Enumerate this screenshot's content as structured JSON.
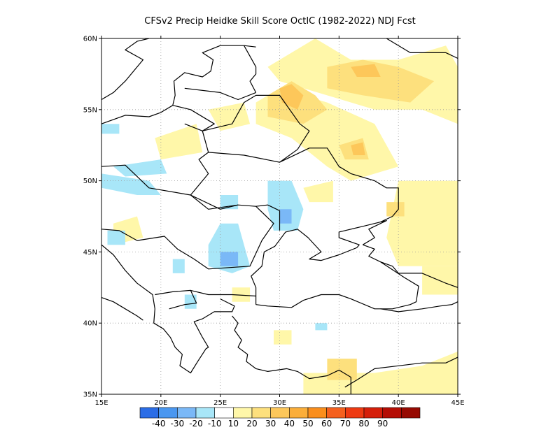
{
  "title": "CFSv2 Precip Heidke Skill Score OctIC (1982-2022) NDJ Fcst",
  "map": {
    "lon_range": [
      15,
      45
    ],
    "lat_range": [
      35,
      60
    ],
    "x_ticks": [
      {
        "value": 15,
        "label": "15E"
      },
      {
        "value": 20,
        "label": "20E"
      },
      {
        "value": 25,
        "label": "25E"
      },
      {
        "value": 30,
        "label": "30E"
      },
      {
        "value": 35,
        "label": "35E"
      },
      {
        "value": 40,
        "label": "40E"
      },
      {
        "value": 45,
        "label": "45E"
      }
    ],
    "y_ticks": [
      {
        "value": 60,
        "label": "60N"
      },
      {
        "value": 55,
        "label": "55N"
      },
      {
        "value": 50,
        "label": "50N"
      },
      {
        "value": 45,
        "label": "45N"
      },
      {
        "value": 40,
        "label": "40N"
      },
      {
        "value": 35,
        "label": "35N"
      }
    ],
    "grid": true
  },
  "colorbar": {
    "colors": [
      "#2b6de6",
      "#4a97f0",
      "#7ab8f7",
      "#a8e6f8",
      "#ffffff",
      "#fff7a9",
      "#fde07d",
      "#fdc75a",
      "#fbae3a",
      "#fa8e1c",
      "#f5601e",
      "#ee3a12",
      "#d51f0a",
      "#b40d04",
      "#960a02"
    ],
    "labels": [
      "-40",
      "-30",
      "-20",
      "-10",
      "10",
      "20",
      "30",
      "40",
      "50",
      "60",
      "70",
      "80",
      "90"
    ]
  },
  "skill_regions": [
    {
      "level": 10,
      "points": [
        [
          29,
          58
        ],
        [
          33,
          60
        ],
        [
          36,
          58.5
        ],
        [
          40,
          58.5
        ],
        [
          44,
          59.5
        ],
        [
          45,
          58
        ],
        [
          45,
          50
        ],
        [
          40,
          50
        ],
        [
          39,
          46
        ],
        [
          40,
          44
        ],
        [
          45,
          44
        ],
        [
          45,
          54
        ],
        [
          42,
          55
        ],
        [
          38,
          55
        ],
        [
          34,
          56
        ],
        [
          30,
          57
        ]
      ]
    },
    {
      "level": 10,
      "points": [
        [
          28,
          55.5
        ],
        [
          30,
          56.5
        ],
        [
          34,
          55.5
        ],
        [
          38,
          54
        ],
        [
          40,
          51
        ],
        [
          36,
          50
        ],
        [
          34,
          51
        ],
        [
          31,
          53
        ],
        [
          28,
          54
        ]
      ]
    },
    {
      "level": 10,
      "points": [
        [
          24,
          55
        ],
        [
          27,
          55.5
        ],
        [
          27.5,
          54
        ],
        [
          25,
          53.5
        ]
      ]
    },
    {
      "level": 10,
      "points": [
        [
          19.5,
          53
        ],
        [
          23,
          54
        ],
        [
          23.5,
          52
        ],
        [
          20,
          51.5
        ]
      ]
    },
    {
      "level": 10,
      "points": [
        [
          16,
          47
        ],
        [
          18,
          47.5
        ],
        [
          18.5,
          46
        ],
        [
          16,
          45.5
        ]
      ]
    },
    {
      "level": 10,
      "points": [
        [
          32,
          49.5
        ],
        [
          34.5,
          50
        ],
        [
          34.5,
          48.5
        ],
        [
          32.5,
          48.5
        ]
      ]
    },
    {
      "level": 10,
      "points": [
        [
          26,
          42.5
        ],
        [
          27.5,
          42.5
        ],
        [
          27.5,
          41.5
        ],
        [
          26,
          41.5
        ]
      ]
    },
    {
      "level": 10,
      "points": [
        [
          29.5,
          39.5
        ],
        [
          31,
          39.5
        ],
        [
          31,
          38.5
        ],
        [
          29.5,
          38.5
        ]
      ]
    },
    {
      "level": 10,
      "points": [
        [
          32,
          36.5
        ],
        [
          38,
          36.5
        ],
        [
          42,
          37
        ],
        [
          45,
          38
        ],
        [
          45,
          35
        ],
        [
          32,
          35
        ]
      ]
    },
    {
      "level": 10,
      "points": [
        [
          42,
          44
        ],
        [
          45,
          44
        ],
        [
          45,
          42
        ],
        [
          42,
          42
        ]
      ]
    },
    {
      "level": 20,
      "points": [
        [
          34,
          58
        ],
        [
          37,
          58.5
        ],
        [
          40,
          58
        ],
        [
          43,
          57
        ],
        [
          41,
          55.5
        ],
        [
          37,
          56
        ],
        [
          34,
          56.5
        ]
      ]
    },
    {
      "level": 20,
      "points": [
        [
          29,
          56
        ],
        [
          31,
          57
        ],
        [
          33,
          56
        ],
        [
          34,
          55
        ],
        [
          32,
          54
        ],
        [
          29,
          54.5
        ]
      ]
    },
    {
      "level": 20,
      "points": [
        [
          35,
          52.5
        ],
        [
          37,
          53
        ],
        [
          37.5,
          51.5
        ],
        [
          35.5,
          51.5
        ]
      ]
    },
    {
      "level": 20,
      "points": [
        [
          34,
          37.5
        ],
        [
          36.5,
          37.5
        ],
        [
          36.5,
          36
        ],
        [
          34,
          36
        ]
      ]
    },
    {
      "level": 20,
      "points": [
        [
          39,
          48.5
        ],
        [
          40.5,
          48.5
        ],
        [
          40.5,
          47.5
        ],
        [
          39,
          47.5
        ]
      ]
    },
    {
      "level": 30,
      "points": [
        [
          30,
          56.5
        ],
        [
          31,
          56.8
        ],
        [
          32,
          56
        ],
        [
          31.5,
          55
        ],
        [
          30.2,
          55.5
        ]
      ]
    },
    {
      "level": 30,
      "points": [
        [
          36,
          52.5
        ],
        [
          37,
          52.7
        ],
        [
          37.2,
          51.8
        ],
        [
          36.2,
          51.8
        ]
      ]
    },
    {
      "level": 30,
      "points": [
        [
          36,
          58
        ],
        [
          38,
          58.2
        ],
        [
          38.5,
          57.3
        ],
        [
          36.5,
          57.3
        ]
      ]
    },
    {
      "level": -10,
      "points": [
        [
          15,
          50.5
        ],
        [
          19,
          50
        ],
        [
          20,
          49
        ],
        [
          18,
          49
        ],
        [
          15,
          49.5
        ]
      ]
    },
    {
      "level": -10,
      "points": [
        [
          15,
          54
        ],
        [
          16.5,
          54
        ],
        [
          16.5,
          53.3
        ],
        [
          15,
          53.3
        ]
      ]
    },
    {
      "level": -10,
      "points": [
        [
          16,
          51
        ],
        [
          20,
          51.5
        ],
        [
          20.5,
          50.5
        ],
        [
          17,
          50.3
        ]
      ]
    },
    {
      "level": -10,
      "points": [
        [
          29,
          50
        ],
        [
          31,
          50
        ],
        [
          32,
          48
        ],
        [
          31.5,
          46.5
        ],
        [
          29.5,
          46.5
        ],
        [
          29,
          48
        ]
      ]
    },
    {
      "level": -10,
      "points": [
        [
          25,
          49
        ],
        [
          26.5,
          49
        ],
        [
          26.5,
          48
        ],
        [
          25,
          48
        ]
      ]
    },
    {
      "level": -10,
      "points": [
        [
          25,
          47
        ],
        [
          26.5,
          47
        ],
        [
          27.5,
          44
        ],
        [
          26,
          43.5
        ],
        [
          24,
          44
        ],
        [
          24,
          45.5
        ]
      ]
    },
    {
      "level": -10,
      "points": [
        [
          15.5,
          46.5
        ],
        [
          17,
          46.5
        ],
        [
          17,
          45.5
        ],
        [
          15.5,
          45.5
        ]
      ]
    },
    {
      "level": -10,
      "points": [
        [
          21,
          44.5
        ],
        [
          22,
          44.5
        ],
        [
          22,
          43.5
        ],
        [
          21,
          43.5
        ]
      ]
    },
    {
      "level": -10,
      "points": [
        [
          22,
          42
        ],
        [
          23,
          42
        ],
        [
          23,
          41
        ],
        [
          22,
          41
        ]
      ]
    },
    {
      "level": -10,
      "points": [
        [
          33,
          40
        ],
        [
          34,
          40
        ],
        [
          34,
          39.5
        ],
        [
          33,
          39.5
        ]
      ]
    },
    {
      "level": -20,
      "points": [
        [
          25,
          45
        ],
        [
          26.5,
          45
        ],
        [
          26.5,
          44
        ],
        [
          25,
          44
        ]
      ]
    },
    {
      "level": -20,
      "points": [
        [
          30,
          48
        ],
        [
          31,
          48
        ],
        [
          31,
          47
        ],
        [
          30,
          47
        ]
      ]
    }
  ],
  "land_outlines": [
    [
      [
        15,
        54
      ],
      [
        17,
        54.6
      ],
      [
        19,
        54.5
      ],
      [
        20,
        54.8
      ],
      [
        21,
        55.3
      ],
      [
        21.2,
        56
      ],
      [
        21.1,
        57
      ],
      [
        22,
        57.6
      ],
      [
        23.5,
        57.3
      ],
      [
        24.2,
        57.7
      ],
      [
        24.4,
        58.5
      ],
      [
        23.5,
        59
      ],
      [
        25,
        59.5
      ],
      [
        27,
        59.5
      ],
      [
        28,
        59.4
      ]
    ],
    [
      [
        15,
        45.5
      ],
      [
        16,
        44.8
      ],
      [
        17,
        43.7
      ],
      [
        18,
        42.8
      ],
      [
        19.3,
        42
      ],
      [
        19.5,
        41
      ],
      [
        19.4,
        40
      ],
      [
        20.2,
        39.6
      ],
      [
        20.8,
        39
      ],
      [
        21.2,
        38.3
      ],
      [
        21.8,
        37.8
      ],
      [
        21.6,
        37
      ],
      [
        22.5,
        36.5
      ],
      [
        23.1,
        37.3
      ],
      [
        23.8,
        38.2
      ],
      [
        24,
        38.3
      ],
      [
        23.5,
        39
      ],
      [
        22.8,
        40.1
      ],
      [
        23.5,
        40.3
      ],
      [
        24.5,
        40.8
      ],
      [
        26,
        40.8
      ],
      [
        26.2,
        41.2
      ],
      [
        25,
        41.7
      ]
    ],
    [
      [
        26,
        40.5
      ],
      [
        26.5,
        40
      ],
      [
        26.2,
        39.5
      ],
      [
        26.8,
        38.8
      ],
      [
        26.5,
        38.3
      ],
      [
        27.3,
        37.8
      ],
      [
        27.2,
        37.3
      ],
      [
        28,
        36.8
      ],
      [
        29,
        36.6
      ],
      [
        30.6,
        36.8
      ],
      [
        31.5,
        36.6
      ],
      [
        32.5,
        36.1
      ],
      [
        34,
        36.3
      ],
      [
        35,
        36.7
      ],
      [
        36,
        36.2
      ],
      [
        36,
        35
      ]
    ],
    [
      [
        28,
        41.3
      ],
      [
        29,
        41.2
      ],
      [
        31,
        41.1
      ],
      [
        32,
        41.6
      ],
      [
        33.5,
        42
      ],
      [
        35,
        42
      ],
      [
        36,
        41.7
      ],
      [
        38,
        41
      ],
      [
        39.5,
        41
      ],
      [
        41,
        41.3
      ],
      [
        41.5,
        41.5
      ],
      [
        41.7,
        42.6
      ],
      [
        40.5,
        43.2
      ],
      [
        38.5,
        44.3
      ],
      [
        37.5,
        44.7
      ],
      [
        38,
        45.2
      ],
      [
        37,
        45.5
      ]
    ],
    [
      [
        28,
        41.3
      ],
      [
        28,
        42.5
      ],
      [
        27.6,
        43.3
      ],
      [
        28.5,
        44
      ],
      [
        28.7,
        45
      ],
      [
        29.6,
        45.4
      ],
      [
        30.5,
        46.4
      ],
      [
        31.5,
        46.6
      ],
      [
        32.4,
        46
      ],
      [
        33.5,
        45
      ],
      [
        32.5,
        44.5
      ],
      [
        33.5,
        44.4
      ],
      [
        35,
        44.8
      ],
      [
        36.5,
        45.3
      ],
      [
        36.7,
        45.5
      ],
      [
        35,
        46
      ],
      [
        35,
        46.4
      ],
      [
        37,
        46.8
      ],
      [
        38.5,
        47.1
      ],
      [
        39,
        47.2
      ],
      [
        37.5,
        46.6
      ],
      [
        38,
        46
      ],
      [
        37,
        45.5
      ]
    ],
    [
      [
        45,
        42.5
      ],
      [
        44,
        42.8
      ],
      [
        42,
        43.5
      ],
      [
        40,
        43.5
      ],
      [
        39.5,
        44
      ],
      [
        38.5,
        44.3
      ]
    ],
    [
      [
        15,
        51
      ],
      [
        17,
        51.1
      ],
      [
        19,
        49.5
      ],
      [
        22.5,
        49
      ],
      [
        24,
        48
      ],
      [
        26.5,
        48.3
      ],
      [
        28,
        48.2
      ],
      [
        29.5,
        47
      ],
      [
        28.5,
        45.8
      ],
      [
        27.5,
        44
      ],
      [
        24,
        43.8
      ],
      [
        22.8,
        44.5
      ],
      [
        21.4,
        45.2
      ],
      [
        20.3,
        46.1
      ],
      [
        18,
        45.8
      ],
      [
        16.5,
        46.5
      ],
      [
        15,
        46.6
      ]
    ],
    [
      [
        22,
        54
      ],
      [
        23.5,
        53.5
      ],
      [
        24,
        52
      ],
      [
        23.2,
        51.5
      ],
      [
        24,
        50.5
      ],
      [
        22.5,
        49
      ],
      [
        25,
        48
      ],
      [
        26.5,
        48.3
      ]
    ],
    [
      [
        24,
        52
      ],
      [
        27,
        51.8
      ],
      [
        30,
        51.3
      ],
      [
        32.5,
        52.3
      ],
      [
        34,
        52.3
      ],
      [
        35,
        51
      ],
      [
        36,
        50.5
      ],
      [
        38,
        50
      ],
      [
        39,
        49.5
      ],
      [
        40,
        49.5
      ],
      [
        40,
        48
      ],
      [
        39.5,
        47.5
      ],
      [
        38.5,
        47.1
      ]
    ],
    [
      [
        23.5,
        53.5
      ],
      [
        26,
        54
      ],
      [
        27,
        55.5
      ],
      [
        28,
        56
      ],
      [
        30,
        56
      ],
      [
        31.7,
        54
      ],
      [
        32.5,
        53.5
      ],
      [
        31.5,
        52.2
      ],
      [
        30,
        51.3
      ]
    ],
    [
      [
        22,
        56.5
      ],
      [
        25,
        56.2
      ],
      [
        26.5,
        55.7
      ],
      [
        28,
        56.2
      ]
    ],
    [
      [
        21,
        55.3
      ],
      [
        22.5,
        55
      ],
      [
        24.5,
        54
      ],
      [
        23.5,
        53.5
      ]
    ],
    [
      [
        27,
        59.5
      ],
      [
        28,
        58
      ],
      [
        28,
        57.5
      ],
      [
        27.5,
        57
      ],
      [
        28,
        56.2
      ]
    ],
    [
      [
        15,
        55.7
      ],
      [
        16,
        56.2
      ],
      [
        17,
        57
      ],
      [
        18.5,
        58.5
      ],
      [
        17,
        59.2
      ],
      [
        18,
        59.8
      ],
      [
        19,
        60
      ]
    ],
    [
      [
        28,
        48.2
      ],
      [
        29,
        48.3
      ],
      [
        30,
        47.9
      ],
      [
        30,
        46.5
      ]
    ],
    [
      [
        19.5,
        42
      ],
      [
        21,
        42.2
      ],
      [
        22.5,
        42.3
      ],
      [
        23,
        41.4
      ],
      [
        22,
        41.3
      ],
      [
        20.7,
        41
      ]
    ],
    [
      [
        22.5,
        42.3
      ],
      [
        24,
        42
      ],
      [
        26,
        42
      ],
      [
        28,
        41.9
      ]
    ],
    [
      [
        39,
        60
      ],
      [
        41,
        59
      ],
      [
        44,
        59
      ],
      [
        45,
        58.6
      ]
    ],
    [
      [
        35.5,
        35.5
      ],
      [
        36.5,
        36
      ],
      [
        38,
        36.8
      ],
      [
        40,
        37
      ],
      [
        42,
        37.2
      ],
      [
        44,
        37.2
      ],
      [
        45,
        37.6
      ]
    ],
    [
      [
        38.5,
        41
      ],
      [
        40,
        40.8
      ],
      [
        42,
        41
      ],
      [
        43.5,
        41.2
      ],
      [
        44.5,
        41.3
      ],
      [
        45,
        41.5
      ]
    ],
    [
      [
        15,
        41.8
      ],
      [
        16,
        41.5
      ],
      [
        17,
        41
      ],
      [
        18,
        40.5
      ],
      [
        18.5,
        40.2
      ]
    ]
  ]
}
